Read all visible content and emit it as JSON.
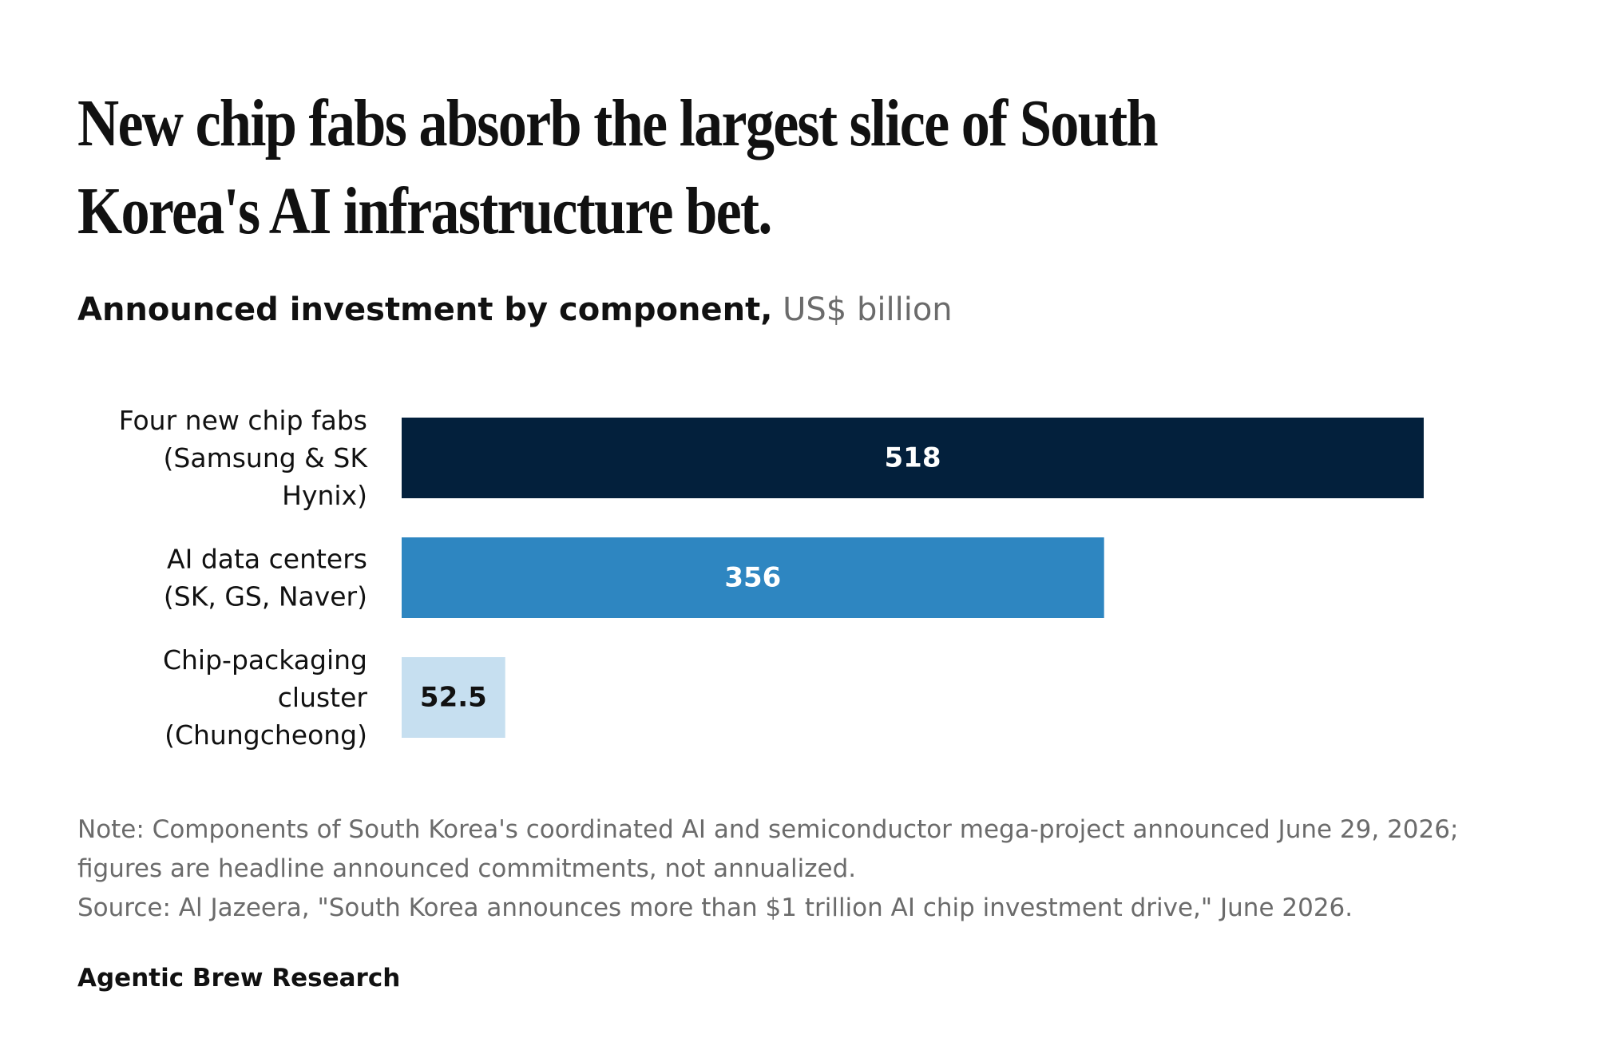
{
  "header": {
    "title": "New chip fabs absorb the largest slice of South Korea's AI infrastructure bet.",
    "subtitle": "Announced investment by component,",
    "unit": "US$ billion"
  },
  "footer": {
    "note": "Note: Components of South Korea's coordinated AI and semiconductor mega-project announced June 29, 2026; figures are headline announced commitments, not annualized.",
    "source": "Source: Al Jazeera, \"South Korea announces more than $1 trillion AI chip investment drive,\" June 2026.",
    "brand": "Agentic Brew Research"
  },
  "chart_data": {
    "type": "bar",
    "orientation": "horizontal",
    "categories": [
      [
        "Four new chip fabs",
        "(Samsung & SK",
        "Hynix)"
      ],
      [
        "AI data centers",
        "(SK, GS, Naver)"
      ],
      [
        "Chip-packaging",
        "cluster",
        "(Chungcheong)"
      ]
    ],
    "values": [
      518,
      356,
      52.5
    ],
    "value_labels": [
      "518",
      "356",
      "52.5"
    ],
    "colors": [
      "#03203c",
      "#2e86c1",
      "#c6dff0"
    ],
    "label_colors": [
      "#ffffff",
      "#ffffff",
      "#111111"
    ],
    "xlim": [
      0,
      518
    ],
    "grid": false,
    "legend": "none"
  }
}
